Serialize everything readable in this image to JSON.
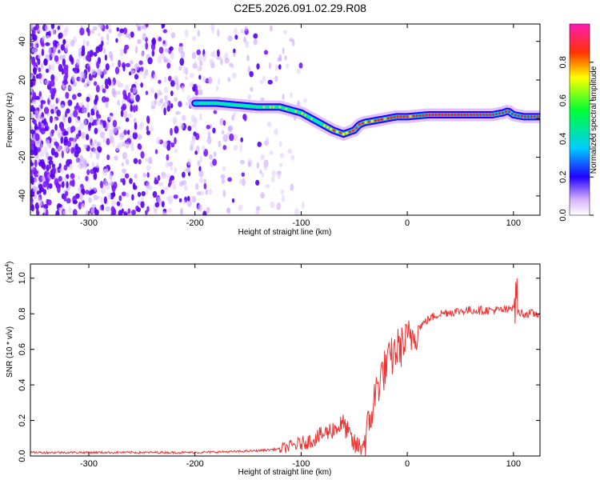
{
  "title": "C2E5.2026.091.02.29.R08",
  "chart_data": [
    {
      "type": "heatmap",
      "title": "C2E5.2026.091.02.29.R08",
      "xlabel": "Height of straight line (km)",
      "ylabel": "Frequency (Hz)",
      "xlim": [
        -355,
        125
      ],
      "ylim": [
        -50,
        49
      ],
      "xticks": [
        -300,
        -200,
        -100,
        0,
        100
      ],
      "yticks": [
        -40,
        -20,
        0,
        20,
        40
      ],
      "colorbar": {
        "label": "Normalized spectral amplitude",
        "range": [
          0,
          1
        ],
        "ticks": [
          "0.0",
          "0.2",
          "0.4",
          "0.6",
          "0.8"
        ]
      },
      "ridge": {
        "x": [
          -200,
          -180,
          -160,
          -140,
          -120,
          -100,
          -90,
          -80,
          -70,
          -60,
          -50,
          -45,
          -40,
          -30,
          -20,
          -10,
          0,
          20,
          40,
          60,
          80,
          90,
          95,
          100,
          110,
          125
        ],
        "y": [
          8,
          8,
          7,
          6,
          6,
          3,
          0,
          -3,
          -6,
          -8,
          -6,
          -3,
          -2,
          -1,
          0,
          1,
          1,
          2,
          2,
          2,
          2,
          3,
          4,
          2,
          1,
          1
        ]
      }
    },
    {
      "type": "line",
      "xlabel": "Height of straight line (km)",
      "ylabel": "SNR (10 * v/v)",
      "yscale_label": "(x10",
      "yscale_exp": "4",
      "xlim": [
        -355,
        125
      ],
      "ylim": [
        0,
        1.08
      ],
      "xticks": [
        -300,
        -200,
        -100,
        0,
        100
      ],
      "yticks": [
        "0.0",
        "0.2",
        "0.4",
        "0.6",
        "0.8",
        "1.0"
      ],
      "series": [
        {
          "name": "SNR",
          "color": "#ee3333",
          "x": [
            -355,
            -300,
            -250,
            -200,
            -160,
            -140,
            -120,
            -100,
            -90,
            -80,
            -70,
            -60,
            -55,
            -50,
            -45,
            -40,
            -35,
            -30,
            -25,
            -20,
            -15,
            -10,
            -5,
            0,
            10,
            20,
            30,
            40,
            60,
            80,
            95,
            100,
            103,
            105,
            110,
            125
          ],
          "y": [
            0.02,
            0.02,
            0.02,
            0.02,
            0.025,
            0.03,
            0.04,
            0.07,
            0.09,
            0.12,
            0.15,
            0.18,
            0.12,
            0.06,
            0.05,
            0.08,
            0.2,
            0.35,
            0.45,
            0.5,
            0.55,
            0.6,
            0.62,
            0.65,
            0.72,
            0.77,
            0.8,
            0.81,
            0.82,
            0.82,
            0.82,
            0.85,
            0.8,
            0.81,
            0.8,
            0.8
          ]
        }
      ]
    }
  ]
}
